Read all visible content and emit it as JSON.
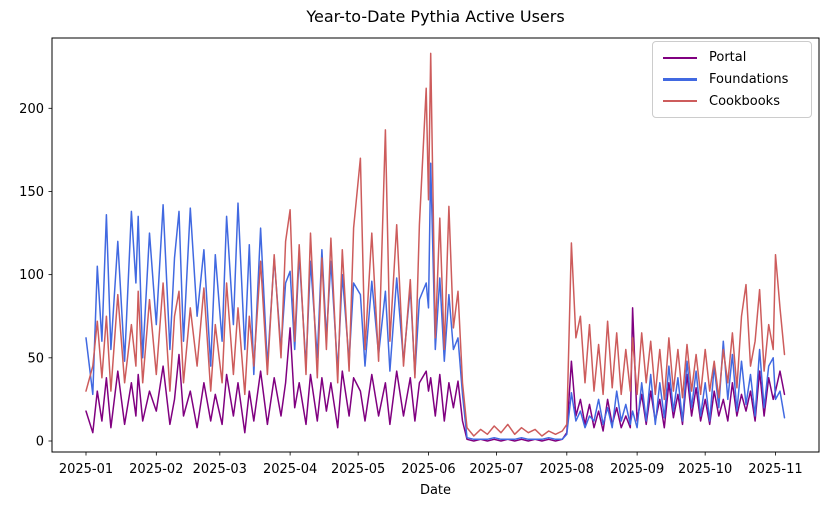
{
  "figure": {
    "title": "Year-to-Date Pythia Active Users",
    "xlabel": "Date"
  },
  "chart_data": {
    "type": "line",
    "title": "Year-to-Date Pythia Active Users",
    "xlabel": "Date",
    "ylabel": "",
    "grid": false,
    "legend_position": "upper right",
    "y_ticks": [
      0,
      50,
      100,
      150,
      200
    ],
    "ylim": [
      -12,
      244
    ],
    "x_ticks": [
      {
        "label": "2025-01",
        "date": "2025-01-01"
      },
      {
        "label": "2025-02",
        "date": "2025-02-01"
      },
      {
        "label": "2025-03",
        "date": "2025-03-01"
      },
      {
        "label": "2025-04",
        "date": "2025-04-01"
      },
      {
        "label": "2025-05",
        "date": "2025-05-01"
      },
      {
        "label": "2025-06",
        "date": "2025-06-01"
      },
      {
        "label": "2025-07",
        "date": "2025-07-01"
      },
      {
        "label": "2025-08",
        "date": "2025-08-01"
      },
      {
        "label": "2025-09",
        "date": "2025-09-01"
      },
      {
        "label": "2025-10",
        "date": "2025-10-01"
      },
      {
        "label": "2025-11",
        "date": "2025-11-01"
      }
    ],
    "x": [
      "2025-01-01",
      "2025-01-04",
      "2025-01-06",
      "2025-01-08",
      "2025-01-10",
      "2025-01-12",
      "2025-01-15",
      "2025-01-18",
      "2025-01-21",
      "2025-01-23",
      "2025-01-24",
      "2025-01-26",
      "2025-01-29",
      "2025-02-01",
      "2025-02-04",
      "2025-02-07",
      "2025-02-09",
      "2025-02-11",
      "2025-02-13",
      "2025-02-16",
      "2025-02-19",
      "2025-02-22",
      "2025-02-25",
      "2025-02-27",
      "2025-03-02",
      "2025-03-04",
      "2025-03-07",
      "2025-03-09",
      "2025-03-12",
      "2025-03-14",
      "2025-03-16",
      "2025-03-19",
      "2025-03-22",
      "2025-03-25",
      "2025-03-28",
      "2025-03-30",
      "2025-04-01",
      "2025-04-03",
      "2025-04-05",
      "2025-04-08",
      "2025-04-10",
      "2025-04-13",
      "2025-04-15",
      "2025-04-17",
      "2025-04-19",
      "2025-04-22",
      "2025-04-24",
      "2025-04-27",
      "2025-04-29",
      "2025-05-02",
      "2025-05-04",
      "2025-05-07",
      "2025-05-10",
      "2025-05-13",
      "2025-05-15",
      "2025-05-18",
      "2025-05-21",
      "2025-05-24",
      "2025-05-26",
      "2025-05-28",
      "2025-05-31",
      "2025-06-01",
      "2025-06-02",
      "2025-06-04",
      "2025-06-06",
      "2025-06-08",
      "2025-06-10",
      "2025-06-12",
      "2025-06-14",
      "2025-06-16",
      "2025-06-18",
      "2025-06-21",
      "2025-06-24",
      "2025-06-27",
      "2025-06-30",
      "2025-07-03",
      "2025-07-06",
      "2025-07-09",
      "2025-07-12",
      "2025-07-15",
      "2025-07-18",
      "2025-07-21",
      "2025-07-24",
      "2025-07-27",
      "2025-07-30",
      "2025-08-01",
      "2025-08-03",
      "2025-08-05",
      "2025-08-07",
      "2025-08-09",
      "2025-08-11",
      "2025-08-13",
      "2025-08-15",
      "2025-08-17",
      "2025-08-19",
      "2025-08-21",
      "2025-08-23",
      "2025-08-25",
      "2025-08-27",
      "2025-08-29",
      "2025-08-30",
      "2025-09-01",
      "2025-09-03",
      "2025-09-05",
      "2025-09-07",
      "2025-09-09",
      "2025-09-11",
      "2025-09-13",
      "2025-09-15",
      "2025-09-17",
      "2025-09-19",
      "2025-09-21",
      "2025-09-23",
      "2025-09-25",
      "2025-09-27",
      "2025-09-29",
      "2025-10-01",
      "2025-10-03",
      "2025-10-05",
      "2025-10-07",
      "2025-10-09",
      "2025-10-11",
      "2025-10-13",
      "2025-10-15",
      "2025-10-17",
      "2025-10-19",
      "2025-10-21",
      "2025-10-23",
      "2025-10-25",
      "2025-10-27",
      "2025-10-29",
      "2025-10-31",
      "2025-11-01",
      "2025-11-03",
      "2025-11-05"
    ],
    "series": [
      {
        "label": "Portal",
        "color": "#800080",
        "values": [
          18,
          5,
          30,
          12,
          38,
          8,
          42,
          10,
          35,
          15,
          40,
          12,
          30,
          18,
          45,
          10,
          25,
          52,
          15,
          30,
          8,
          35,
          12,
          28,
          10,
          40,
          15,
          35,
          5,
          30,
          12,
          42,
          10,
          38,
          15,
          35,
          68,
          20,
          35,
          10,
          40,
          12,
          38,
          18,
          35,
          8,
          42,
          15,
          38,
          30,
          12,
          40,
          15,
          35,
          10,
          42,
          15,
          38,
          12,
          35,
          42,
          30,
          38,
          15,
          40,
          12,
          35,
          20,
          36,
          12,
          1,
          0,
          1,
          0,
          1,
          0,
          1,
          0,
          1,
          0,
          1,
          0,
          1,
          0,
          1,
          5,
          48,
          15,
          25,
          10,
          22,
          8,
          18,
          6,
          25,
          10,
          20,
          8,
          15,
          8,
          80,
          12,
          28,
          10,
          30,
          12,
          25,
          8,
          35,
          14,
          28,
          10,
          40,
          15,
          32,
          12,
          25,
          10,
          30,
          15,
          25,
          12,
          35,
          15,
          28,
          18,
          30,
          12,
          42,
          15,
          38,
          25,
          30,
          42,
          28
        ]
      },
      {
        "label": "Foundations",
        "color": "#4169e1",
        "values": [
          62,
          28,
          105,
          60,
          136,
          55,
          120,
          48,
          138,
          95,
          135,
          50,
          125,
          70,
          142,
          55,
          110,
          138,
          60,
          140,
          75,
          115,
          45,
          112,
          60,
          135,
          70,
          143,
          55,
          118,
          40,
          128,
          45,
          110,
          55,
          95,
          102,
          55,
          112,
          45,
          108,
          50,
          115,
          62,
          108,
          42,
          100,
          48,
          95,
          88,
          45,
          96,
          52,
          90,
          42,
          98,
          48,
          92,
          40,
          85,
          95,
          80,
          167,
          55,
          98,
          48,
          88,
          55,
          62,
          28,
          2,
          1,
          1,
          1,
          2,
          1,
          1,
          1,
          2,
          1,
          1,
          1,
          2,
          1,
          1,
          4,
          29,
          12,
          18,
          8,
          15,
          12,
          25,
          10,
          20,
          8,
          30,
          12,
          22,
          10,
          18,
          8,
          35,
          12,
          40,
          10,
          35,
          14,
          45,
          18,
          38,
          12,
          48,
          20,
          42,
          15,
          35,
          12,
          45,
          20,
          60,
          25,
          52,
          18,
          48,
          22,
          40,
          15,
          55,
          20,
          45,
          50,
          25,
          30,
          14
        ]
      },
      {
        "label": "Cookbooks",
        "color": "#cd5c5c",
        "values": [
          30,
          45,
          72,
          38,
          75,
          30,
          88,
          35,
          70,
          45,
          90,
          35,
          85,
          40,
          95,
          30,
          75,
          90,
          35,
          80,
          45,
          92,
          30,
          70,
          35,
          95,
          40,
          80,
          28,
          75,
          45,
          108,
          40,
          112,
          50,
          120,
          139,
          60,
          118,
          40,
          125,
          38,
          110,
          55,
          122,
          35,
          115,
          42,
          128,
          170,
          55,
          125,
          48,
          187,
          60,
          130,
          45,
          97,
          38,
          130,
          212,
          145,
          233,
          62,
          134,
          55,
          141,
          68,
          90,
          35,
          8,
          3,
          7,
          4,
          9,
          5,
          10,
          4,
          8,
          5,
          7,
          3,
          6,
          4,
          6,
          10,
          119,
          62,
          75,
          35,
          70,
          30,
          58,
          28,
          72,
          32,
          65,
          28,
          55,
          30,
          62,
          28,
          65,
          35,
          60,
          28,
          55,
          25,
          62,
          30,
          55,
          26,
          58,
          30,
          52,
          28,
          55,
          30,
          48,
          26,
          55,
          35,
          65,
          32,
          75,
          94,
          45,
          60,
          91,
          42,
          70,
          55,
          112,
          80,
          52
        ]
      }
    ]
  }
}
